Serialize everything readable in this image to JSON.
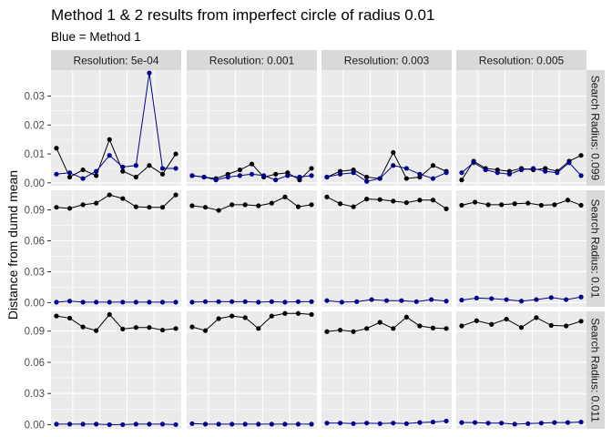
{
  "chart_data": {
    "type": "line",
    "title": "Method 1 & 2 results from imperfect circle of radius 0.01",
    "subtitle": "Blue = Method 1",
    "ylabel": "Distance from dumd mean",
    "xlabel": "",
    "grid": true,
    "legend": "none",
    "col_facets": [
      "Resolution: 5e-04",
      "Resolution: 0.001",
      "Resolution: 0.003",
      "Resolution: 0.005"
    ],
    "row_facets": [
      "Search Radius: 0.099",
      "Search Radius: 0.01",
      "Search Radius: 0.011"
    ],
    "x": [
      1,
      2,
      3,
      4,
      5,
      6,
      7,
      8,
      9,
      10,
      11,
      12
    ],
    "rows": [
      {
        "ylim": [
          -0.001,
          0.039
        ],
        "yticks": [
          0.0,
          0.01,
          0.02,
          0.03
        ],
        "ytick_labels": [
          "0.00",
          "0.01",
          "0.02",
          "0.03"
        ],
        "panels": [
          {
            "black": [
              0.012,
              0.002,
              0.0045,
              0.0025,
              0.015,
              0.004,
              0.002,
              0.006,
              0.003,
              0.01
            ],
            "blue": [
              0.003,
              0.0035,
              0.0015,
              0.004,
              0.0095,
              0.0055,
              0.006,
              0.038,
              0.005,
              0.005
            ]
          },
          {
            "black": [
              0.0025,
              0.002,
              0.0015,
              0.003,
              0.0045,
              0.0065,
              0.002,
              0.003,
              0.0035,
              0.001,
              0.005
            ],
            "blue": [
              0.0025,
              0.002,
              0.001,
              0.002,
              0.0025,
              0.003,
              0.0025,
              0.001,
              0.0025,
              0.002,
              0.0025
            ]
          },
          {
            "black": [
              0.002,
              0.004,
              0.0045,
              0.002,
              0.0015,
              0.0105,
              0.0015,
              0.002,
              0.006,
              0.004
            ],
            "blue": [
              0.002,
              0.003,
              0.0035,
              0.0005,
              0.0015,
              0.006,
              0.005,
              0.003,
              0.0015,
              0.0035
            ]
          },
          {
            "black": [
              0.001,
              0.0075,
              0.005,
              0.0045,
              0.004,
              0.005,
              0.0045,
              0.005,
              0.004,
              0.0075,
              0.0095
            ],
            "blue": [
              0.0035,
              0.007,
              0.0045,
              0.0035,
              0.003,
              0.0045,
              0.005,
              0.004,
              0.0035,
              0.007,
              0.0025
            ]
          }
        ]
      },
      {
        "ylim": [
          -0.004,
          0.109
        ],
        "yticks": [
          0.0,
          0.03,
          0.06,
          0.09
        ],
        "ytick_labels": [
          "0.00",
          "0.03",
          "0.06",
          "0.09"
        ],
        "panels": [
          {
            "black": [
              0.0925,
              0.0915,
              0.095,
              0.0965,
              0.1045,
              0.101,
              0.093,
              0.0925,
              0.0925,
              0.1045
            ],
            "blue": [
              0.0005,
              0.0015,
              0.0005,
              0.0005,
              0.0005,
              0.0005,
              0.0005,
              0.0005,
              0.0005,
              0.0005
            ]
          },
          {
            "black": [
              0.094,
              0.0925,
              0.0895,
              0.095,
              0.095,
              0.094,
              0.0965,
              0.1025,
              0.093,
              0.095
            ],
            "blue": [
              0.0005,
              0.001,
              0.001,
              0.001,
              0.001,
              0.0005,
              0.001,
              0.0005,
              0.001,
              0.001
            ]
          },
          {
            "black": [
              0.1025,
              0.096,
              0.093,
              0.1005,
              0.1,
              0.0985,
              0.097,
              0.0995,
              0.0995,
              0.091
            ],
            "blue": [
              0.002,
              0.0005,
              0.001,
              0.003,
              0.002,
              0.002,
              0.001,
              0.003,
              0.0015
            ]
          },
          {
            "black": [
              0.0945,
              0.0975,
              0.095,
              0.095,
              0.096,
              0.0965,
              0.0945,
              0.095,
              0.0995,
              0.0945
            ],
            "blue": [
              0.0025,
              0.0045,
              0.004,
              0.003,
              0.0015,
              0.003,
              0.005,
              0.003,
              0.0055
            ]
          }
        ]
      },
      {
        "ylim": [
          -0.004,
          0.109
        ],
        "yticks": [
          0.0,
          0.03,
          0.06,
          0.09
        ],
        "ytick_labels": [
          "0.00",
          "0.03",
          "0.06",
          "0.09"
        ],
        "panels": [
          {
            "black": [
              0.1045,
              0.1025,
              0.094,
              0.0905,
              0.106,
              0.092,
              0.0935,
              0.0935,
              0.091,
              0.0925
            ],
            "blue": [
              0.0005,
              0.0005,
              0.0005,
              0.0005,
              0.0,
              0.0,
              0.0005,
              0.0005,
              0.0005,
              0.0
            ]
          },
          {
            "black": [
              0.094,
              0.0905,
              0.102,
              0.1045,
              0.103,
              0.0925,
              0.1045,
              0.107,
              0.107,
              0.106
            ],
            "blue": [
              0.001,
              0.0005,
              0.0005,
              0.0005,
              0.0005,
              0.0005,
              0.0005,
              0.0005,
              0.0005,
              0.0005
            ]
          },
          {
            "black": [
              0.0895,
              0.091,
              0.0895,
              0.0925,
              0.0985,
              0.0925,
              0.1035,
              0.095,
              0.093,
              0.0925
            ],
            "blue": [
              0.0015,
              0.0015,
              0.001,
              0.0015,
              0.001,
              0.0015,
              0.001,
              0.002,
              0.0025,
              0.0035
            ]
          },
          {
            "black": [
              0.095,
              0.1,
              0.0965,
              0.1015,
              0.0935,
              0.103,
              0.0955,
              0.095,
              0.0995
            ],
            "blue": [
              0.002,
              0.002,
              0.0015,
              0.0015,
              0.0005,
              0.001,
              0.0015,
              0.002,
              0.002,
              0.0025
            ]
          }
        ]
      }
    ]
  },
  "colors": {
    "method1": "#00008b",
    "method2": "#000000",
    "panel_bg": "#ebebeb",
    "grid_major": "#ffffff",
    "strip_bg": "#d9d9d9"
  }
}
